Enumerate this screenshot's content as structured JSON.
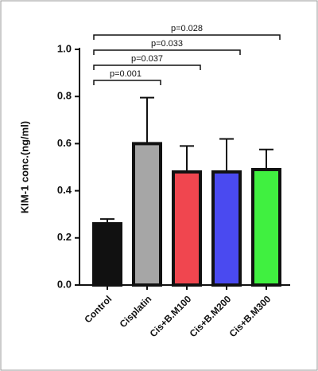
{
  "chart_data": {
    "type": "bar",
    "y_label": "KIM-1 conc.(ng/ml)",
    "categories": [
      "Control",
      "Cisplatin",
      "Cis+B.M100",
      "Cis+B.M200",
      "Cis+B.M300"
    ],
    "values": [
      0.26,
      0.6,
      0.48,
      0.48,
      0.49
    ],
    "errors": [
      0.02,
      0.195,
      0.11,
      0.14,
      0.085
    ],
    "colors": [
      "#111111",
      "#a6a6a6",
      "#f0464f",
      "#4a4af0",
      "#40f040"
    ],
    "ylim": [
      0,
      1.0
    ],
    "yticks": [
      {
        "value": 0,
        "label": "0.0"
      },
      0.2,
      0.4,
      0.6,
      0.8,
      {
        "value": 1.0,
        "label": "1.0"
      }
    ],
    "comparisons": [
      {
        "label": "p=0.001",
        "groups": [
          "Control",
          "Cisplatin"
        ]
      },
      {
        "label": "p=0.037",
        "groups": [
          "Control",
          "Cis+B.M100"
        ]
      },
      {
        "label": "p=0.033",
        "groups": [
          "Control",
          "Cis+B.M200"
        ]
      },
      {
        "label": "p=0.028",
        "groups": [
          "Control",
          "Cis+B.M300"
        ]
      }
    ]
  }
}
